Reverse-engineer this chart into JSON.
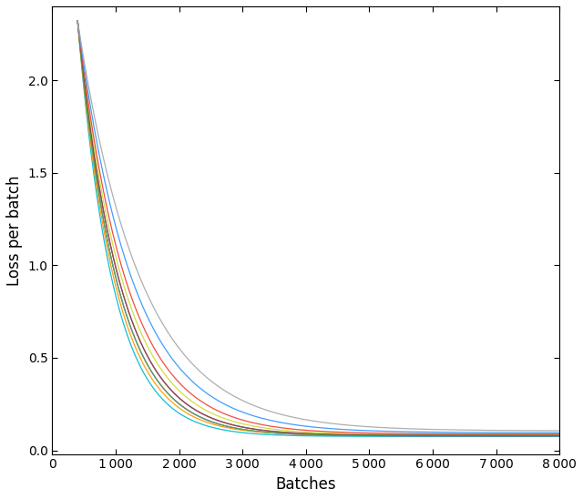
{
  "title": "",
  "xlabel": "Batches",
  "ylabel": "Loss per batch",
  "xlim": [
    0,
    8000
  ],
  "ylim": [
    -0.02,
    2.4
  ],
  "n_points": 8000,
  "colors": [
    "#00bcd4",
    "#9c27b0",
    "#e91e8c",
    "#ff9800",
    "#cddc39",
    "#4caf50",
    "#795548",
    "#f44336",
    "#3399ff",
    "#aaaaaa"
  ],
  "curve_params": [
    {
      "k": 0.0018,
      "c": 0.075,
      "x0": 400
    },
    {
      "k": 0.0016,
      "c": 0.078,
      "x0": 400
    },
    {
      "k": 0.0015,
      "c": 0.08,
      "x0": 400
    },
    {
      "k": 0.0017,
      "c": 0.082,
      "x0": 400
    },
    {
      "k": 0.0014,
      "c": 0.085,
      "x0": 400
    },
    {
      "k": 0.0016,
      "c": 0.079,
      "x0": 400
    },
    {
      "k": 0.0015,
      "c": 0.081,
      "x0": 400
    },
    {
      "k": 0.0013,
      "c": 0.088,
      "x0": 400
    },
    {
      "k": 0.00115,
      "c": 0.095,
      "x0": 400
    },
    {
      "k": 0.001,
      "c": 0.105,
      "x0": 400
    }
  ],
  "xticks": [
    0,
    1000,
    2000,
    3000,
    4000,
    5000,
    6000,
    7000,
    8000
  ],
  "yticks": [
    0,
    0.5,
    1.0,
    1.5,
    2.0
  ],
  "peak_loss": 2.32,
  "peak_x": 400
}
